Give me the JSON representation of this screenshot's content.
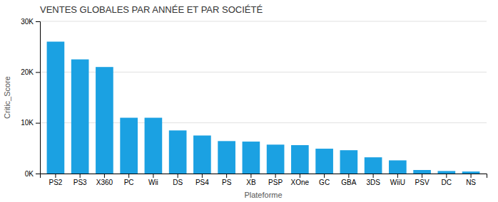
{
  "chart_data": {
    "type": "bar",
    "title": "VENTES GLOBALES PAR ANNÉE ET PAR SOCIÉTÉ",
    "xlabel": "Plateforme",
    "ylabel": "Critic_Score",
    "categories": [
      "PS2",
      "PS3",
      "X360",
      "PC",
      "Wii",
      "DS",
      "PS4",
      "PS",
      "XB",
      "PSP",
      "XOne",
      "GC",
      "GBA",
      "3DS",
      "WiiU",
      "PSV",
      "DC",
      "NS"
    ],
    "values": [
      26000,
      22500,
      21000,
      11000,
      11000,
      8500,
      7500,
      6400,
      6300,
      5700,
      5600,
      4900,
      4600,
      3200,
      2600,
      700,
      500,
      400
    ],
    "color": "#1ba1e2",
    "ylim": [
      0,
      30000
    ],
    "yticks": [
      {
        "value": 0,
        "label": "0K"
      },
      {
        "value": 10000,
        "label": "10K"
      },
      {
        "value": 20000,
        "label": "20K"
      },
      {
        "value": 30000,
        "label": "30K"
      }
    ],
    "grid": true
  }
}
